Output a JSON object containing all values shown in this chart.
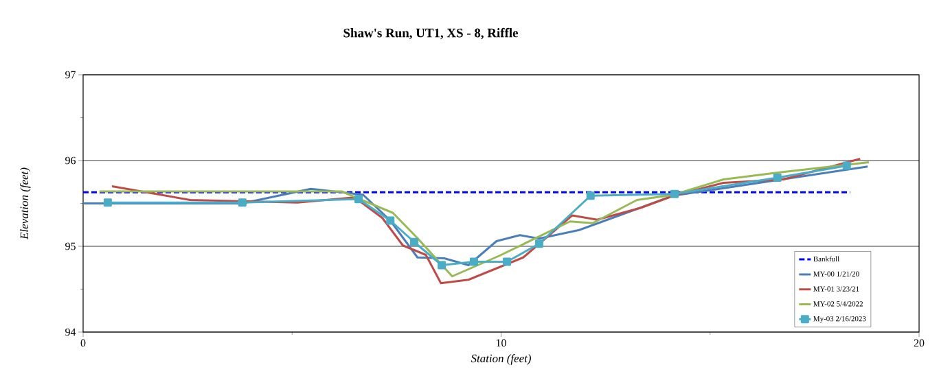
{
  "chart_data": {
    "type": "line",
    "title": "Shaw's Run, UT1, XS - 8, Riffle",
    "xlabel": "Station (feet)",
    "ylabel": "Elevation (feet)",
    "xlim": [
      0,
      20
    ],
    "ylim": [
      94,
      97
    ],
    "xticks": [
      0,
      {
        "value": 5,
        "label": null
      },
      10,
      {
        "value": 15,
        "label": null
      },
      20
    ],
    "yticks": [
      94,
      {
        "value": 94.5,
        "label": null
      },
      95,
      {
        "value": 95.5,
        "label": null
      },
      96,
      {
        "value": 96.5,
        "label": null
      },
      97
    ],
    "grid": "y",
    "legend": "bottom right",
    "series": [
      {
        "name": "Bankfull",
        "color": "#0000ff",
        "line_style": "dashed",
        "marker": "none",
        "x": [
          0,
          18.35
        ],
        "values": [
          95.63,
          95.63
        ]
      },
      {
        "name": "MY-00 1/21/20",
        "color": "#4a7ebb",
        "line_style": "solid",
        "marker": "none",
        "x": [
          0,
          3.8,
          5.45,
          6.7,
          7.35,
          8.0,
          8.64,
          9.22,
          9.89,
          10.45,
          10.91,
          11.87,
          14.12,
          18.77
        ],
        "values": [
          95.5,
          95.5,
          95.67,
          95.6,
          95.3,
          94.87,
          94.86,
          94.78,
          95.06,
          95.13,
          95.09,
          95.19,
          95.59,
          95.93
        ]
      },
      {
        "name": "MY-01 3/23/21",
        "color": "#be4b48",
        "line_style": "solid",
        "marker": "none",
        "x": [
          0.69,
          2.56,
          5.13,
          6.5,
          7.16,
          7.65,
          8.2,
          8.56,
          9.22,
          10.53,
          11.7,
          12.3,
          13.35,
          14.12,
          15.32,
          16.75,
          18.59
        ],
        "values": [
          95.7,
          95.54,
          95.51,
          95.57,
          95.33,
          95.01,
          94.9,
          94.57,
          94.61,
          94.87,
          95.36,
          95.31,
          95.45,
          95.59,
          95.74,
          95.78,
          96.02
        ]
      },
      {
        "name": "MY-02 5/4/2022",
        "color": "#98b954",
        "line_style": "solid",
        "marker": "none",
        "x": [
          0.39,
          6.18,
          7.41,
          7.99,
          8.83,
          9.96,
          11.65,
          12.19,
          13.25,
          14.12,
          15.32,
          16.63,
          18.8
        ],
        "values": [
          95.64,
          95.64,
          95.39,
          95.1,
          94.65,
          94.89,
          95.29,
          95.27,
          95.54,
          95.6,
          95.78,
          95.86,
          95.98
        ]
      },
      {
        "name": "My-03 2/16/2023",
        "color": "#4bacc6",
        "line_style": "solid",
        "marker": "square",
        "x": [
          0.59,
          3.81,
          6.59,
          7.35,
          7.92,
          8.58,
          9.35,
          10.14,
          10.91,
          12.14,
          14.15,
          16.61,
          18.27
        ],
        "values": [
          95.51,
          95.51,
          95.55,
          95.3,
          95.05,
          94.78,
          94.82,
          94.82,
          95.03,
          95.59,
          95.61,
          95.8,
          95.94
        ]
      }
    ]
  }
}
